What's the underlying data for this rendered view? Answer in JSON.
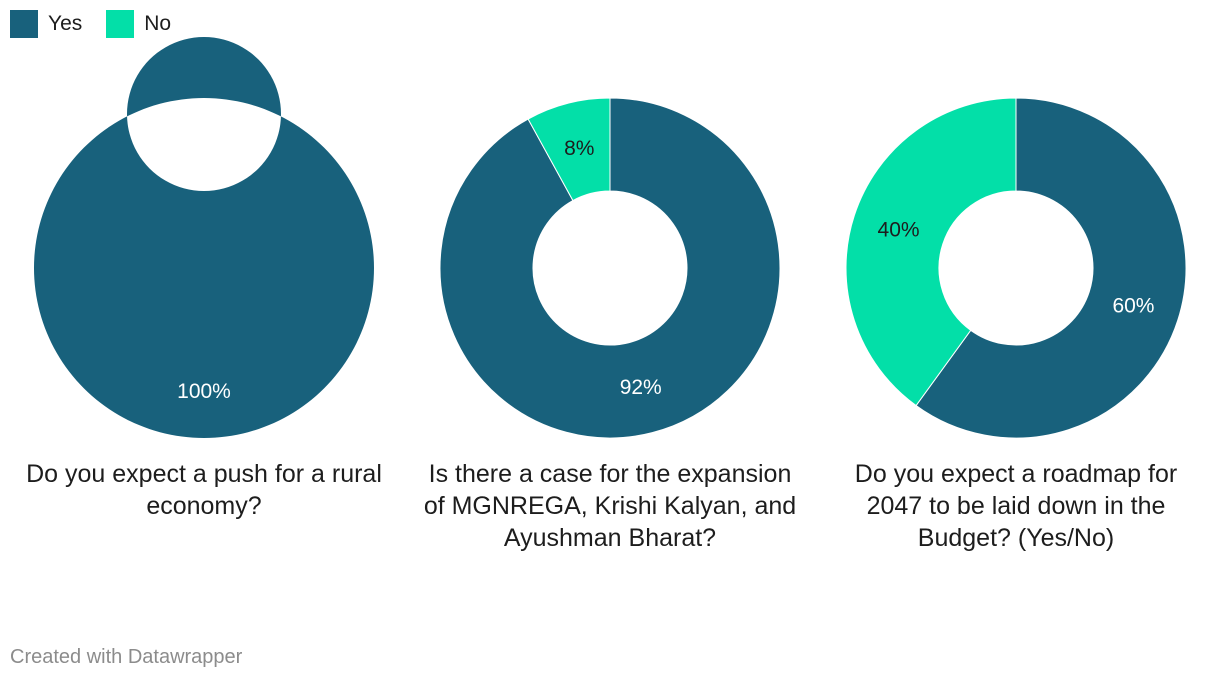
{
  "colors": {
    "yes": "#18617c",
    "no": "#03dfa8",
    "separator": "#ffffff"
  },
  "legend": [
    {
      "label": "Yes",
      "color": "#18617c"
    },
    {
      "label": "No",
      "color": "#03dfa8"
    }
  ],
  "chart_data": [
    {
      "type": "pie",
      "variant": "donut",
      "title": "Do you expect a push for a rural economy?",
      "slices": [
        {
          "name": "Yes",
          "value": 100,
          "label": "100%"
        },
        {
          "name": "No",
          "value": 0,
          "label": ""
        }
      ]
    },
    {
      "type": "pie",
      "variant": "donut",
      "title": "Is there a case for the expansion of MGNREGA, Krishi Kalyan, and Ayushman Bharat?",
      "slices": [
        {
          "name": "Yes",
          "value": 92,
          "label": "92%"
        },
        {
          "name": "No",
          "value": 8,
          "label": "8%"
        }
      ]
    },
    {
      "type": "pie",
      "variant": "donut",
      "title": "Do you expect a roadmap for 2047 to be laid down in the Budget? (Yes/No)",
      "slices": [
        {
          "name": "Yes",
          "value": 60,
          "label": "60%"
        },
        {
          "name": "No",
          "value": 40,
          "label": "40%"
        }
      ]
    }
  ],
  "footer": {
    "credit": "Created with Datawrapper"
  }
}
